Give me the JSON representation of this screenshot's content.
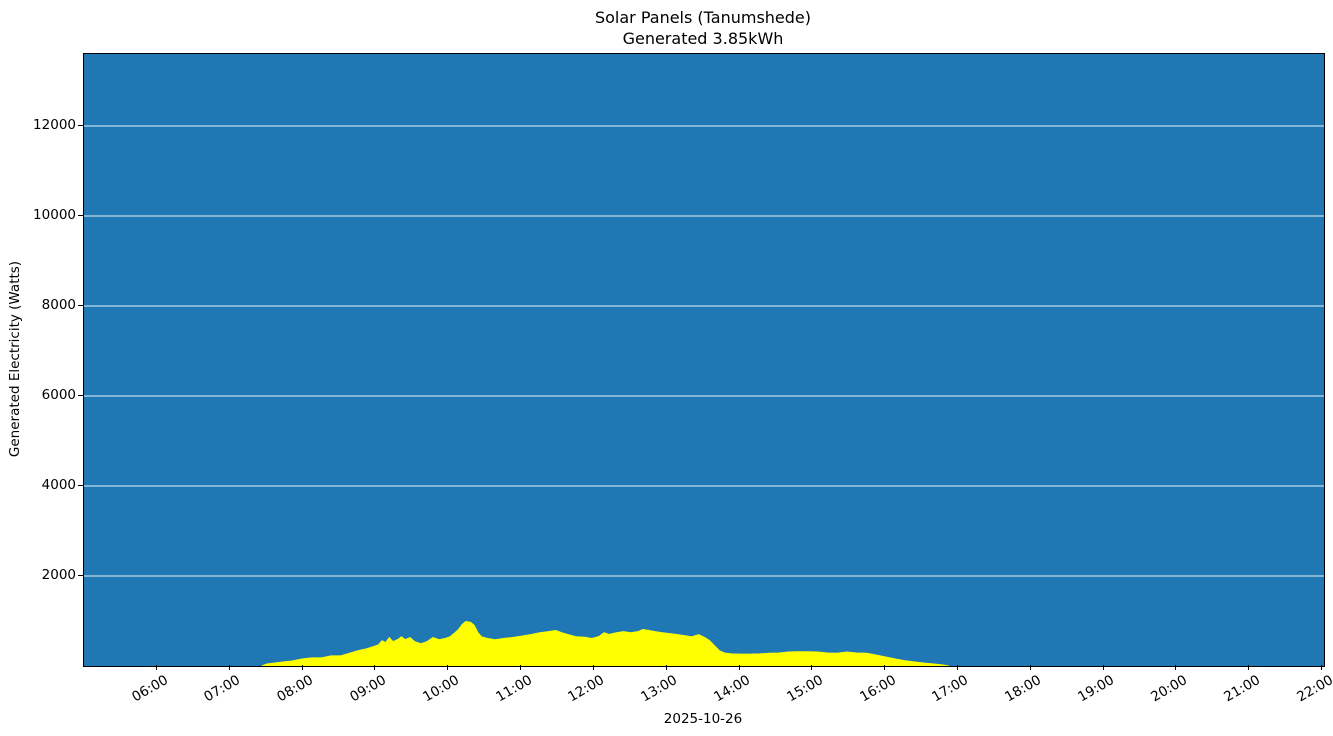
{
  "figure": {
    "title_line1": "Solar Panels (Tanumshede)",
    "title_line2": "Generated 3.85kWh",
    "ylabel": "Generated Electricity (Watts)",
    "xlabel": "2025-10-26"
  },
  "colors": {
    "plot_background": "#1f77b4",
    "series_fill": "#ffff00",
    "gridline": "#ffffff",
    "spine": "#000000",
    "figure_background": "#ffffff",
    "text": "#000000"
  },
  "chart_data": {
    "type": "area",
    "title": "Solar Panels (Tanumshede)",
    "subtitle": "Generated 3.85kWh",
    "total_generated_kwh": 3.85,
    "xlabel": "2025-10-26",
    "ylabel": "Generated Electricity (Watts)",
    "xlim_hours": [
      4.99,
      22.02
    ],
    "ylim": [
      0,
      13600
    ],
    "xticks": [
      "06:00",
      "07:00",
      "08:00",
      "09:00",
      "10:00",
      "11:00",
      "12:00",
      "13:00",
      "14:00",
      "15:00",
      "16:00",
      "17:00",
      "18:00",
      "19:00",
      "20:00",
      "21:00",
      "22:00"
    ],
    "yticks": [
      2000,
      4000,
      6000,
      8000,
      10000,
      12000
    ],
    "grid": {
      "horizontal": true,
      "vertical": false,
      "color": "#ffffff"
    },
    "legend_position": "none",
    "series": [
      {
        "name": "Generated Electricity (Watts)",
        "fill_color": "#ffff00",
        "points": [
          [
            "07:26",
            0
          ],
          [
            "07:30",
            45
          ],
          [
            "07:36",
            65
          ],
          [
            "07:43",
            90
          ],
          [
            "07:51",
            110
          ],
          [
            "07:59",
            155
          ],
          [
            "08:07",
            180
          ],
          [
            "08:15",
            180
          ],
          [
            "08:23",
            225
          ],
          [
            "08:31",
            225
          ],
          [
            "08:39",
            290
          ],
          [
            "08:45",
            340
          ],
          [
            "08:52",
            380
          ],
          [
            "08:58",
            430
          ],
          [
            "09:02",
            470
          ],
          [
            "09:05",
            560
          ],
          [
            "09:08",
            520
          ],
          [
            "09:11",
            630
          ],
          [
            "09:14",
            540
          ],
          [
            "09:18",
            590
          ],
          [
            "09:21",
            650
          ],
          [
            "09:24",
            585
          ],
          [
            "09:28",
            630
          ],
          [
            "09:32",
            540
          ],
          [
            "09:37",
            495
          ],
          [
            "09:42",
            540
          ],
          [
            "09:47",
            630
          ],
          [
            "09:52",
            585
          ],
          [
            "09:57",
            610
          ],
          [
            "10:01",
            650
          ],
          [
            "10:05",
            740
          ],
          [
            "10:08",
            810
          ],
          [
            "10:11",
            920
          ],
          [
            "10:14",
            990
          ],
          [
            "10:18",
            970
          ],
          [
            "10:21",
            900
          ],
          [
            "10:24",
            740
          ],
          [
            "10:27",
            650
          ],
          [
            "10:32",
            610
          ],
          [
            "10:38",
            585
          ],
          [
            "10:45",
            610
          ],
          [
            "10:52",
            630
          ],
          [
            "11:00",
            665
          ],
          [
            "11:08",
            700
          ],
          [
            "11:15",
            740
          ],
          [
            "11:22",
            765
          ],
          [
            "11:28",
            790
          ],
          [
            "11:33",
            740
          ],
          [
            "11:38",
            700
          ],
          [
            "11:45",
            650
          ],
          [
            "11:52",
            640
          ],
          [
            "11:58",
            610
          ],
          [
            "12:04",
            660
          ],
          [
            "12:08",
            740
          ],
          [
            "12:12",
            700
          ],
          [
            "12:18",
            740
          ],
          [
            "12:24",
            765
          ],
          [
            "12:30",
            740
          ],
          [
            "12:36",
            765
          ],
          [
            "12:40",
            810
          ],
          [
            "12:45",
            790
          ],
          [
            "12:50",
            765
          ],
          [
            "12:56",
            740
          ],
          [
            "13:02",
            720
          ],
          [
            "13:08",
            700
          ],
          [
            "13:14",
            675
          ],
          [
            "13:20",
            650
          ],
          [
            "13:26",
            695
          ],
          [
            "13:31",
            630
          ],
          [
            "13:35",
            560
          ],
          [
            "13:39",
            450
          ],
          [
            "13:43",
            340
          ],
          [
            "13:47",
            290
          ],
          [
            "13:53",
            270
          ],
          [
            "14:00",
            265
          ],
          [
            "14:08",
            265
          ],
          [
            "14:16",
            270
          ],
          [
            "14:24",
            285
          ],
          [
            "14:32",
            290
          ],
          [
            "14:40",
            310
          ],
          [
            "14:48",
            315
          ],
          [
            "14:56",
            315
          ],
          [
            "15:04",
            310
          ],
          [
            "15:12",
            290
          ],
          [
            "15:20",
            285
          ],
          [
            "15:28",
            310
          ],
          [
            "15:36",
            290
          ],
          [
            "15:44",
            285
          ],
          [
            "15:52",
            245
          ],
          [
            "16:00",
            200
          ],
          [
            "16:08",
            155
          ],
          [
            "16:16",
            115
          ],
          [
            "16:24",
            90
          ],
          [
            "16:32",
            65
          ],
          [
            "16:40",
            45
          ],
          [
            "16:48",
            20
          ],
          [
            "16:52",
            0
          ]
        ]
      }
    ]
  }
}
